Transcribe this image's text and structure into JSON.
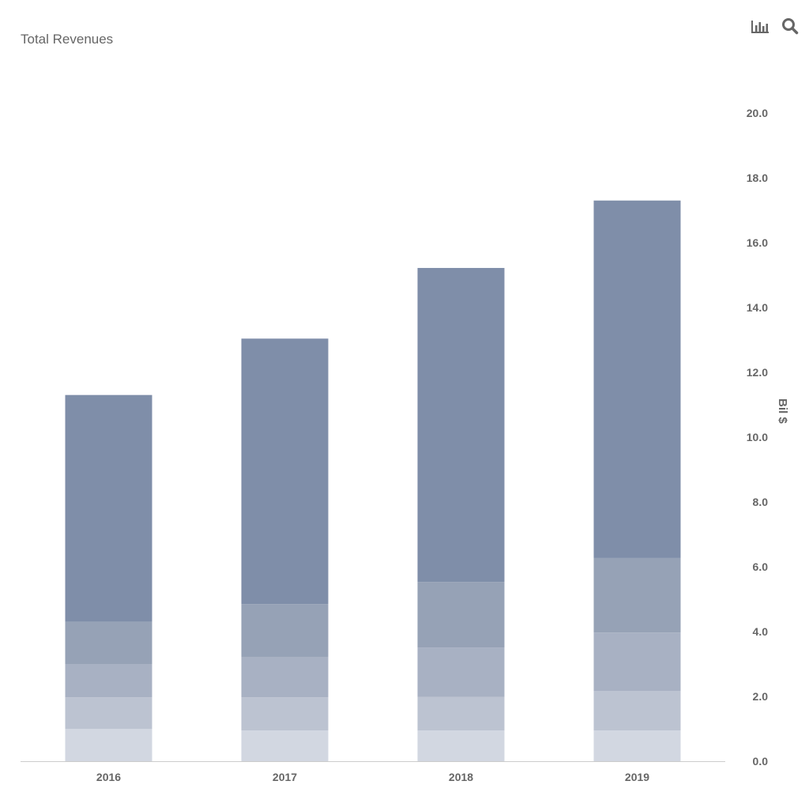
{
  "header": {
    "title": "Total Revenues",
    "icons": [
      "bar-chart-icon",
      "search-icon"
    ]
  },
  "colors": {
    "segments": [
      "#d2d7e1",
      "#bcc3d1",
      "#a8b1c3",
      "#96a2b6",
      "#7f8ea9"
    ],
    "axis": "#cccccc",
    "text": "#666666",
    "icon": "#666666"
  },
  "chart_data": {
    "type": "bar",
    "stacked": true,
    "title": "Total Revenues",
    "xlabel": "",
    "ylabel": "Bil $",
    "ylim": [
      0,
      20
    ],
    "yticks": [
      "0.0",
      "2.0",
      "4.0",
      "6.0",
      "8.0",
      "10.0",
      "12.0",
      "14.0",
      "16.0",
      "18.0",
      "20.0"
    ],
    "y_axis_position": "right",
    "grid": false,
    "legend": "none",
    "categories": [
      "2016",
      "2017",
      "2018",
      "2019"
    ],
    "series": [
      {
        "values": [
          1.0,
          0.95,
          0.95,
          0.95
        ]
      },
      {
        "values": [
          0.97,
          1.02,
          1.03,
          1.22
        ]
      },
      {
        "values": [
          1.03,
          1.25,
          1.53,
          1.8
        ]
      },
      {
        "values": [
          1.3,
          1.63,
          2.02,
          2.3
        ]
      },
      {
        "values": [
          7.0,
          8.19,
          9.69,
          11.03
        ]
      }
    ]
  }
}
